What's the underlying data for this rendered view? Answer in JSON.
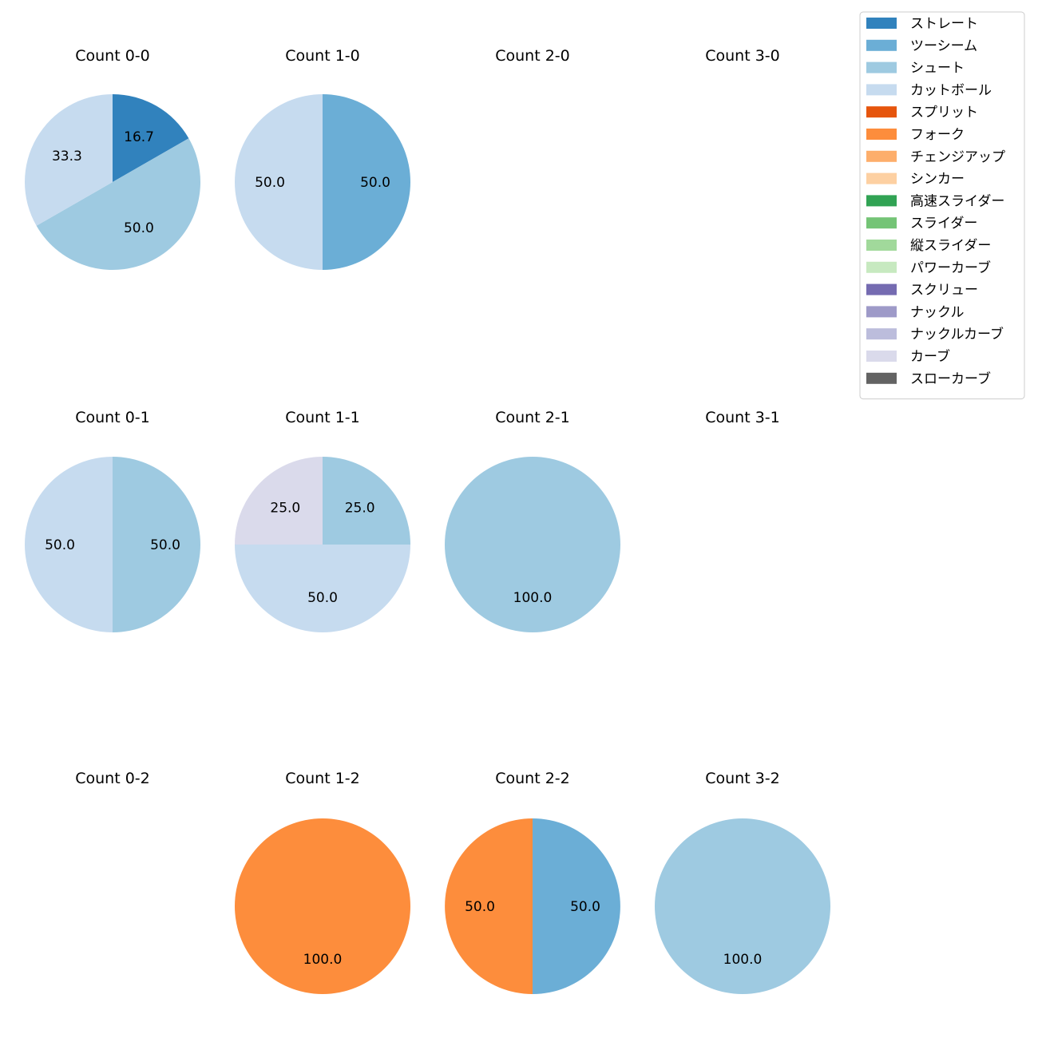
{
  "chart_data": {
    "type": "pie",
    "grid": false,
    "legend_position": "top-right",
    "legend": [
      {
        "name": "ストレート",
        "color": "#3182bd"
      },
      {
        "name": "ツーシーム",
        "color": "#6baed6"
      },
      {
        "name": "シュート",
        "color": "#9ecae1"
      },
      {
        "name": "カットボール",
        "color": "#c6dbef"
      },
      {
        "name": "スプリット",
        "color": "#e6550d"
      },
      {
        "name": "フォーク",
        "color": "#fd8d3c"
      },
      {
        "name": "チェンジアップ",
        "color": "#fdae6b"
      },
      {
        "name": "シンカー",
        "color": "#fdd0a2"
      },
      {
        "name": "高速スライダー",
        "color": "#31a354"
      },
      {
        "name": "スライダー",
        "color": "#74c476"
      },
      {
        "name": "縦スライダー",
        "color": "#a1d99b"
      },
      {
        "name": "パワーカーブ",
        "color": "#c7e9c0"
      },
      {
        "name": "スクリュー",
        "color": "#756bb1"
      },
      {
        "name": "ナックル",
        "color": "#9e9ac8"
      },
      {
        "name": "ナックルカーブ",
        "color": "#bcbddc"
      },
      {
        "name": "カーブ",
        "color": "#dadaeb"
      },
      {
        "name": "スローカーブ",
        "color": "#636363"
      }
    ],
    "panels": [
      {
        "title": "Count 0-0",
        "slices": [
          {
            "name": "ストレート",
            "value": 16.7,
            "label": "16.7"
          },
          {
            "name": "シュート",
            "value": 50.0,
            "label": "50.0"
          },
          {
            "name": "カットボール",
            "value": 33.3,
            "label": "33.3"
          }
        ]
      },
      {
        "title": "Count 1-0",
        "slices": [
          {
            "name": "ツーシーム",
            "value": 50.0,
            "label": "50.0"
          },
          {
            "name": "カットボール",
            "value": 50.0,
            "label": "50.0"
          }
        ]
      },
      {
        "title": "Count 2-0",
        "slices": []
      },
      {
        "title": "Count 3-0",
        "slices": []
      },
      {
        "title": "Count 0-1",
        "slices": [
          {
            "name": "シュート",
            "value": 50.0,
            "label": "50.0"
          },
          {
            "name": "カットボール",
            "value": 50.0,
            "label": "50.0"
          }
        ]
      },
      {
        "title": "Count 1-1",
        "slices": [
          {
            "name": "シュート",
            "value": 25.0,
            "label": "25.0"
          },
          {
            "name": "カットボール",
            "value": 50.0,
            "label": "50.0"
          },
          {
            "name": "カーブ",
            "value": 25.0,
            "label": "25.0"
          }
        ]
      },
      {
        "title": "Count 2-1",
        "slices": [
          {
            "name": "シュート",
            "value": 100.0,
            "label": "100.0"
          }
        ]
      },
      {
        "title": "Count 3-1",
        "slices": []
      },
      {
        "title": "Count 0-2",
        "slices": []
      },
      {
        "title": "Count 1-2",
        "slices": [
          {
            "name": "フォーク",
            "value": 100.0,
            "label": "100.0"
          }
        ]
      },
      {
        "title": "Count 2-2",
        "slices": [
          {
            "name": "ツーシーム",
            "value": 50.0,
            "label": "50.0"
          },
          {
            "name": "フォーク",
            "value": 50.0,
            "label": "50.0"
          }
        ]
      },
      {
        "title": "Count 3-2",
        "slices": [
          {
            "name": "シュート",
            "value": 100.0,
            "label": "100.0"
          }
        ]
      }
    ]
  }
}
